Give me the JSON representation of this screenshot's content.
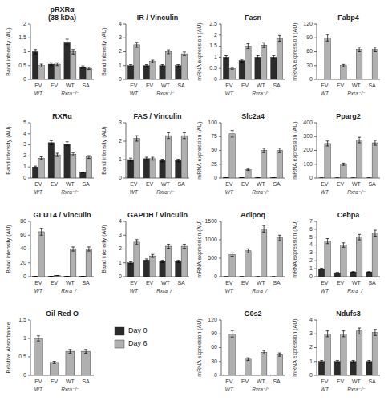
{
  "chart_data": [
    {
      "type": "bar",
      "title": "pRXRα\n(38 kDa)",
      "ylabel": "Band intensity (AU)",
      "categories": [
        "EV",
        "EV",
        "WT",
        "SA"
      ],
      "annotations": [
        "WT",
        "Rxra⁻/⁻"
      ],
      "ylim": [
        0,
        2.0
      ],
      "yticks": [
        0,
        0.5,
        1.0,
        1.5,
        2.0
      ],
      "series": [
        {
          "name": "Day 0",
          "color": "#2b2b2b",
          "values": [
            1.0,
            0.55,
            1.35,
            0.45
          ],
          "errors": [
            0.08,
            0.05,
            0.1,
            0.04
          ]
        },
        {
          "name": "Day 6",
          "color": "#b0b0b0",
          "values": [
            0.5,
            0.55,
            1.0,
            0.4
          ],
          "errors": [
            0.05,
            0.05,
            0.08,
            0.04
          ]
        }
      ]
    },
    {
      "type": "bar",
      "title": "RXRα",
      "ylabel": "Band intensity (AU)",
      "categories": [
        "EV",
        "EV",
        "WT",
        "SA"
      ],
      "annotations": [
        "WT",
        "Rxra⁻/⁻"
      ],
      "ylim": [
        0,
        5
      ],
      "yticks": [
        0,
        1,
        2,
        3,
        4,
        5
      ],
      "series": [
        {
          "color": "#2b2b2b",
          "values": [
            1.0,
            3.2,
            3.1,
            0.5
          ],
          "errors": [
            0.08,
            0.18,
            0.18,
            0.04
          ]
        },
        {
          "color": "#b0b0b0",
          "values": [
            1.8,
            2.1,
            2.15,
            1.9
          ],
          "errors": [
            0.12,
            0.15,
            0.15,
            0.13
          ]
        }
      ]
    },
    {
      "type": "bar",
      "title": "IR / Vinculin",
      "ylabel": "Band intensity (AU)",
      "categories": [
        "EV",
        "EV",
        "WT",
        "SA"
      ],
      "annotations": [
        "WT",
        "Rxra⁻/⁻"
      ],
      "ylim": [
        0,
        4
      ],
      "yticks": [
        0,
        1,
        2,
        3,
        4
      ],
      "series": [
        {
          "color": "#2b2b2b",
          "values": [
            1.0,
            1.0,
            1.0,
            1.0
          ],
          "errors": [
            0.07,
            0.07,
            0.07,
            0.07
          ]
        },
        {
          "color": "#b0b0b0",
          "values": [
            2.5,
            1.3,
            2.0,
            1.85
          ],
          "errors": [
            0.18,
            0.09,
            0.14,
            0.13
          ]
        }
      ]
    },
    {
      "type": "bar",
      "title": "FAS / Vinculin",
      "ylabel": "Band intensity (AU)",
      "categories": [
        "EV",
        "EV",
        "WT",
        "SA"
      ],
      "annotations": [
        "WT",
        "Rxra⁻/⁻"
      ],
      "ylim": [
        0,
        3
      ],
      "yticks": [
        0,
        1,
        2,
        3
      ],
      "series": [
        {
          "color": "#2b2b2b",
          "values": [
            1.0,
            1.05,
            0.95,
            0.95
          ],
          "errors": [
            0.08,
            0.08,
            0.07,
            0.07
          ]
        },
        {
          "color": "#b0b0b0",
          "values": [
            2.15,
            1.05,
            2.3,
            2.3
          ],
          "errors": [
            0.15,
            0.08,
            0.16,
            0.16
          ]
        }
      ]
    },
    {
      "type": "bar",
      "title": "GLUT4 / Vinculin",
      "ylabel": "Band intensity (AU)",
      "categories": [
        "EV",
        "EV",
        "WT",
        "SA"
      ],
      "annotations": [
        "WT",
        "Rxra⁻/⁻"
      ],
      "ylim": [
        0,
        80
      ],
      "yticks": [
        0,
        20,
        40,
        60,
        80
      ],
      "series": [
        {
          "color": "#2b2b2b",
          "values": [
            0.5,
            0.5,
            0.5,
            0.5
          ],
          "errors": [
            0.04,
            0.04,
            0.04,
            0.04
          ]
        },
        {
          "color": "#b0b0b0",
          "values": [
            65,
            1.5,
            40,
            40
          ],
          "errors": [
            5.0,
            0.12,
            3.0,
            3.0
          ]
        }
      ]
    },
    {
      "type": "bar",
      "title": "GAPDH / Vinculin",
      "ylabel": "Band intensity (AU)",
      "categories": [
        "EV",
        "EV",
        "WT",
        "SA"
      ],
      "annotations": [
        "WT",
        "Rxra⁻/⁻"
      ],
      "ylim": [
        0,
        4
      ],
      "yticks": [
        0,
        1,
        2,
        3,
        4
      ],
      "series": [
        {
          "color": "#2b2b2b",
          "values": [
            1.0,
            1.2,
            1.1,
            1.1
          ],
          "errors": [
            0.07,
            0.08,
            0.08,
            0.08
          ]
        },
        {
          "color": "#b0b0b0",
          "values": [
            2.5,
            1.5,
            2.2,
            2.2
          ],
          "errors": [
            0.18,
            0.11,
            0.15,
            0.15
          ]
        }
      ]
    },
    {
      "type": "bar",
      "title": "Fasn",
      "ylabel": "mRNA expression (AU)",
      "categories": [
        "EV",
        "EV",
        "WT",
        "SA"
      ],
      "annotations": [
        "WT",
        "Rxra⁻/⁻"
      ],
      "ylim": [
        0,
        2.5
      ],
      "yticks": [
        0,
        0.5,
        1.0,
        1.5,
        2.0,
        2.5
      ],
      "series": [
        {
          "color": "#2b2b2b",
          "values": [
            1.0,
            0.85,
            1.0,
            1.0
          ],
          "errors": [
            0.07,
            0.06,
            0.07,
            0.07
          ]
        },
        {
          "color": "#b0b0b0",
          "values": [
            0.5,
            1.5,
            1.55,
            1.85
          ],
          "errors": [
            0.04,
            0.11,
            0.11,
            0.13
          ]
        }
      ]
    },
    {
      "type": "bar",
      "title": "Fabp4",
      "ylabel": "mRNA expression (AU)",
      "categories": [
        "EV",
        "EV",
        "WT",
        "SA"
      ],
      "annotations": [
        "WT",
        "Rxra⁻/⁻"
      ],
      "ylim": [
        0,
        120
      ],
      "yticks": [
        0,
        30,
        60,
        90,
        120
      ],
      "series": [
        {
          "color": "#2b2b2b",
          "values": [
            0.5,
            0.5,
            0.5,
            0.5
          ],
          "errors": [
            0.04,
            0.04,
            0.04,
            0.04
          ]
        },
        {
          "color": "#b0b0b0",
          "values": [
            90,
            30,
            65,
            65
          ],
          "errors": [
            7.0,
            2.5,
            5.0,
            5.0
          ]
        }
      ]
    },
    {
      "type": "bar",
      "title": "Slc2a4",
      "ylabel": "mRNA expression (AU)",
      "categories": [
        "EV",
        "EV",
        "WT",
        "SA"
      ],
      "annotations": [
        "WT",
        "Rxra⁻/⁻"
      ],
      "ylim": [
        0,
        100
      ],
      "yticks": [
        0,
        25,
        50,
        75,
        100
      ],
      "series": [
        {
          "color": "#2b2b2b",
          "values": [
            0.5,
            0.5,
            0.5,
            0.5
          ],
          "errors": [
            0.04,
            0.04,
            0.04,
            0.04
          ]
        },
        {
          "color": "#b0b0b0",
          "values": [
            80,
            15,
            50,
            50
          ],
          "errors": [
            6.0,
            1.2,
            4.0,
            4.0
          ]
        }
      ]
    },
    {
      "type": "bar",
      "title": "Pparg2",
      "ylabel": "mRNA expression (AU)",
      "categories": [
        "EV",
        "EV",
        "WT",
        "SA"
      ],
      "annotations": [
        "WT",
        "Rxra⁻/⁻"
      ],
      "ylim": [
        0,
        400
      ],
      "yticks": [
        0,
        100,
        200,
        300,
        400
      ],
      "series": [
        {
          "color": "#2b2b2b",
          "values": [
            0.5,
            0.5,
            0.5,
            0.5
          ],
          "errors": [
            0.04,
            0.04,
            0.04,
            0.04
          ]
        },
        {
          "color": "#b0b0b0",
          "values": [
            250,
            100,
            275,
            255
          ],
          "errors": [
            18.0,
            8.0,
            20.0,
            18.0
          ]
        }
      ]
    },
    {
      "type": "bar",
      "title": "Adipoq",
      "ylabel": "mRNA expression (AU)",
      "categories": [
        "EV",
        "EV",
        "WT",
        "SA"
      ],
      "annotations": [
        "WT",
        "Rxra⁻/⁻"
      ],
      "ylim": [
        0,
        1500
      ],
      "yticks": [
        0,
        500,
        1000,
        1500
      ],
      "series": [
        {
          "color": "#2b2b2b",
          "values": [
            0.5,
            0.5,
            0.5,
            0.5
          ],
          "errors": [
            0.04,
            0.04,
            0.04,
            0.04
          ]
        },
        {
          "color": "#b0b0b0",
          "values": [
            600,
            700,
            1300,
            1050
          ],
          "errors": [
            45.0,
            55.0,
            90.0,
            75.0
          ]
        }
      ]
    },
    {
      "type": "bar",
      "title": "Cebpa",
      "ylabel": "mRNA expression (AU)",
      "categories": [
        "EV",
        "EV",
        "WT",
        "SA"
      ],
      "annotations": [
        "WT",
        "Rxra⁻/⁻"
      ],
      "ylim": [
        0,
        7
      ],
      "yticks": [
        0,
        1,
        2,
        3,
        4,
        5,
        6,
        7
      ],
      "series": [
        {
          "color": "#2b2b2b",
          "values": [
            1.0,
            0.5,
            0.6,
            0.6
          ],
          "errors": [
            0.07,
            0.04,
            0.04,
            0.04
          ]
        },
        {
          "color": "#b0b0b0",
          "values": [
            4.5,
            4.0,
            5.0,
            5.5
          ],
          "errors": [
            0.32,
            0.28,
            0.35,
            0.38
          ]
        }
      ]
    },
    {
      "type": "bar",
      "title": "G0s2",
      "ylabel": "mRNA expression (AU)",
      "categories": [
        "EV",
        "EV",
        "WT",
        "SA"
      ],
      "annotations": [
        "WT",
        "Rxra⁻/⁻"
      ],
      "ylim": [
        0,
        120
      ],
      "yticks": [
        0,
        30,
        60,
        90,
        120
      ],
      "series": [
        {
          "color": "#2b2b2b",
          "values": [
            0.5,
            0.5,
            0.5,
            0.5
          ],
          "errors": [
            0.04,
            0.04,
            0.04,
            0.04
          ]
        },
        {
          "color": "#b0b0b0",
          "values": [
            90,
            35,
            50,
            45
          ],
          "errors": [
            7.0,
            3.0,
            4.0,
            3.5
          ]
        }
      ]
    },
    {
      "type": "bar",
      "title": "Ndufs3",
      "ylabel": "mRNA expression (AU)",
      "categories": [
        "EV",
        "EV",
        "WT",
        "SA"
      ],
      "annotations": [
        "WT",
        "Rxra⁻/⁻"
      ],
      "ylim": [
        0,
        4
      ],
      "yticks": [
        0,
        1,
        2,
        3,
        4
      ],
      "series": [
        {
          "color": "#2b2b2b",
          "values": [
            1.0,
            1.0,
            1.0,
            1.0
          ],
          "errors": [
            0.07,
            0.07,
            0.07,
            0.07
          ]
        },
        {
          "color": "#b0b0b0",
          "values": [
            3.0,
            3.0,
            3.2,
            3.1
          ],
          "errors": [
            0.21,
            0.21,
            0.22,
            0.22
          ]
        }
      ]
    },
    {
      "type": "bar",
      "title": "Oil Red O",
      "ylabel": "Relative Absorbance",
      "categories": [
        "EV",
        "EV",
        "WT",
        "SA"
      ],
      "annotations": [
        "WT",
        "Rxra⁻/⁻"
      ],
      "ylim": [
        0,
        1.5
      ],
      "yticks": [
        0,
        0.5,
        1.0,
        1.5
      ],
      "color": "#b0b0b0",
      "values": [
        1.0,
        0.35,
        0.65,
        0.65
      ],
      "errors": [
        0.07,
        0.03,
        0.05,
        0.05
      ]
    }
  ]
}
